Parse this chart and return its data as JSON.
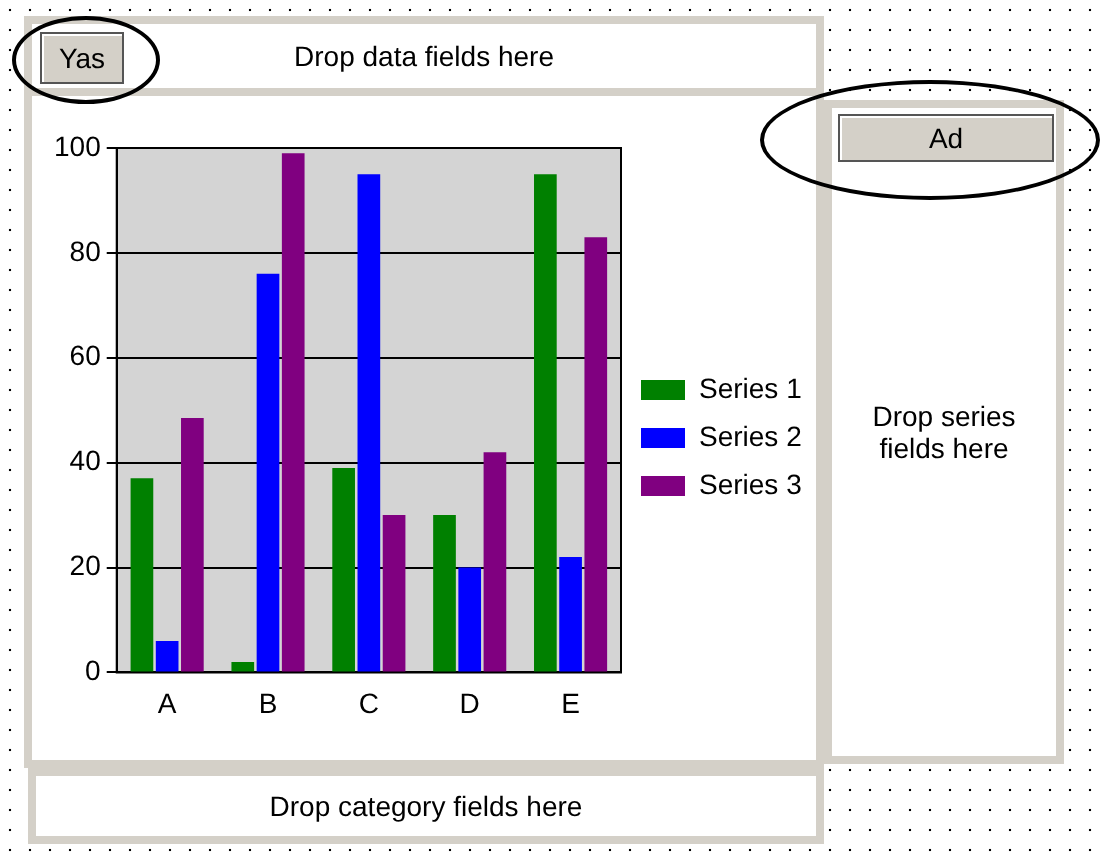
{
  "chart_data": {
    "type": "bar",
    "categories": [
      "A",
      "B",
      "C",
      "D",
      "E"
    ],
    "series": [
      {
        "name": "Series 1",
        "color": "#008000",
        "values": [
          37,
          2,
          39,
          30,
          95
        ]
      },
      {
        "name": "Series 2",
        "color": "#0000ff",
        "values": [
          6,
          76,
          95,
          20,
          22
        ]
      },
      {
        "name": "Series 3",
        "color": "#800080",
        "values": [
          48.5,
          99,
          30,
          42,
          83
        ]
      }
    ],
    "ylim": [
      0,
      100
    ],
    "yticks": [
      0,
      20,
      40,
      60,
      80,
      100
    ],
    "grid": "y",
    "legend": "right",
    "annotations": [
      "Yas",
      "Drop data fields here",
      "Ad",
      "Drop series fields here",
      "Drop category fields here"
    ]
  }
}
